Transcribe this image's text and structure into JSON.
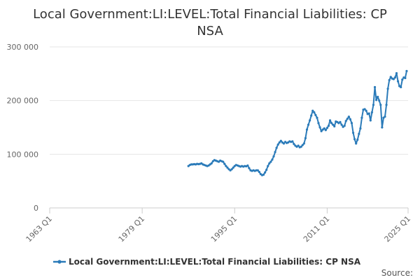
{
  "chart_data": {
    "type": "line",
    "title": "Local Government:LI:LEVEL:Total Financial Liabilities: CP NSA",
    "xlabel": "",
    "ylabel": "",
    "x_tick_labels": [
      "1963 Q1",
      "1979 Q1",
      "1995 Q1",
      "2011 Q1",
      "2025 Q1"
    ],
    "y_tick_labels": [
      "0",
      "100 000",
      "200 000",
      "300 000"
    ],
    "ylim": [
      0,
      300000
    ],
    "xlim": [
      "1963 Q1",
      "2025 Q1"
    ],
    "grid": "horizontal",
    "legend_position": "bottom",
    "line_color": "#2b7bb9",
    "series": [
      {
        "name": "Local Government:LI:LEVEL:Total Financial Liabilities: CP NSA",
        "points": [
          [
            "1987 Q1",
            78000
          ],
          [
            "1987 Q2",
            80000
          ],
          [
            "1987 Q3",
            81000
          ],
          [
            "1987 Q4",
            81000
          ],
          [
            "1988 Q1",
            81500
          ],
          [
            "1988 Q2",
            81000
          ],
          [
            "1988 Q3",
            82000
          ],
          [
            "1988 Q4",
            81500
          ],
          [
            "1989 Q1",
            82000
          ],
          [
            "1989 Q2",
            83000
          ],
          [
            "1989 Q3",
            81000
          ],
          [
            "1989 Q4",
            80000
          ],
          [
            "1990 Q1",
            79000
          ],
          [
            "1990 Q2",
            78000
          ],
          [
            "1990 Q3",
            79000
          ],
          [
            "1990 Q4",
            81000
          ],
          [
            "1991 Q1",
            83000
          ],
          [
            "1991 Q2",
            87000
          ],
          [
            "1991 Q3",
            89000
          ],
          [
            "1991 Q4",
            88000
          ],
          [
            "1992 Q1",
            87000
          ],
          [
            "1992 Q2",
            86000
          ],
          [
            "1992 Q3",
            88000
          ],
          [
            "1992 Q4",
            87000
          ],
          [
            "1993 Q1",
            86000
          ],
          [
            "1993 Q2",
            82000
          ],
          [
            "1993 Q3",
            78000
          ],
          [
            "1993 Q4",
            75000
          ],
          [
            "1994 Q1",
            72000
          ],
          [
            "1994 Q2",
            70000
          ],
          [
            "1994 Q3",
            72000
          ],
          [
            "1994 Q4",
            75000
          ],
          [
            "1995 Q1",
            78000
          ],
          [
            "1995 Q2",
            80000
          ],
          [
            "1995 Q3",
            79000
          ],
          [
            "1995 Q4",
            78000
          ],
          [
            "1996 Q1",
            77000
          ],
          [
            "1996 Q2",
            78000
          ],
          [
            "1996 Q3",
            77000
          ],
          [
            "1996 Q4",
            78000
          ],
          [
            "1997 Q1",
            77500
          ],
          [
            "1997 Q2",
            79000
          ],
          [
            "1997 Q3",
            74000
          ],
          [
            "1997 Q4",
            70000
          ],
          [
            "1998 Q1",
            69000
          ],
          [
            "1998 Q2",
            70000
          ],
          [
            "1998 Q3",
            69000
          ],
          [
            "1998 Q4",
            70000
          ],
          [
            "1999 Q1",
            70000
          ],
          [
            "1999 Q2",
            67000
          ],
          [
            "1999 Q3",
            63000
          ],
          [
            "1999 Q4",
            61000
          ],
          [
            "2000 Q1",
            62000
          ],
          [
            "2000 Q2",
            66000
          ],
          [
            "2000 Q3",
            71000
          ],
          [
            "2000 Q4",
            78000
          ],
          [
            "2001 Q1",
            83000
          ],
          [
            "2001 Q2",
            86000
          ],
          [
            "2001 Q3",
            90000
          ],
          [
            "2001 Q4",
            96000
          ],
          [
            "2002 Q1",
            104000
          ],
          [
            "2002 Q2",
            112000
          ],
          [
            "2002 Q3",
            118000
          ],
          [
            "2002 Q4",
            122000
          ],
          [
            "2003 Q1",
            125000
          ],
          [
            "2003 Q2",
            122000
          ],
          [
            "2003 Q3",
            120000
          ],
          [
            "2003 Q4",
            123000
          ],
          [
            "2004 Q1",
            121000
          ],
          [
            "2004 Q2",
            122000
          ],
          [
            "2004 Q3",
            124000
          ],
          [
            "2004 Q4",
            123000
          ],
          [
            "2005 Q1",
            124000
          ],
          [
            "2005 Q2",
            119000
          ],
          [
            "2005 Q3",
            116000
          ],
          [
            "2005 Q4",
            114000
          ],
          [
            "2006 Q1",
            116000
          ],
          [
            "2006 Q2",
            113000
          ],
          [
            "2006 Q3",
            114000
          ],
          [
            "2006 Q4",
            117000
          ],
          [
            "2007 Q1",
            120000
          ],
          [
            "2007 Q2",
            130000
          ],
          [
            "2007 Q3",
            146000
          ],
          [
            "2007 Q4",
            155000
          ],
          [
            "2008 Q1",
            163000
          ],
          [
            "2008 Q2",
            172000
          ],
          [
            "2008 Q3",
            181000
          ],
          [
            "2008 Q4",
            178000
          ],
          [
            "2009 Q1",
            173000
          ],
          [
            "2009 Q2",
            168000
          ],
          [
            "2009 Q3",
            158000
          ],
          [
            "2009 Q4",
            150000
          ],
          [
            "2010 Q1",
            143000
          ],
          [
            "2010 Q2",
            146000
          ],
          [
            "2010 Q3",
            148000
          ],
          [
            "2010 Q4",
            145000
          ],
          [
            "2011 Q1",
            149000
          ],
          [
            "2011 Q2",
            153000
          ],
          [
            "2011 Q3",
            163000
          ],
          [
            "2011 Q4",
            158000
          ],
          [
            "2012 Q1",
            155000
          ],
          [
            "2012 Q2",
            152000
          ],
          [
            "2012 Q3",
            161000
          ],
          [
            "2012 Q4",
            160000
          ],
          [
            "2013 Q1",
            158000
          ],
          [
            "2013 Q2",
            160000
          ],
          [
            "2013 Q3",
            155000
          ],
          [
            "2013 Q4",
            151000
          ],
          [
            "2014 Q1",
            153000
          ],
          [
            "2014 Q2",
            162000
          ],
          [
            "2014 Q3",
            166000
          ],
          [
            "2014 Q4",
            170000
          ],
          [
            "2015 Q1",
            165000
          ],
          [
            "2015 Q2",
            158000
          ],
          [
            "2015 Q3",
            140000
          ],
          [
            "2015 Q4",
            128000
          ],
          [
            "2016 Q1",
            120000
          ],
          [
            "2016 Q2",
            127000
          ],
          [
            "2016 Q3",
            138000
          ],
          [
            "2016 Q4",
            148000
          ],
          [
            "2017 Q1",
            168000
          ],
          [
            "2017 Q2",
            183000
          ],
          [
            "2017 Q3",
            184000
          ],
          [
            "2017 Q4",
            181000
          ],
          [
            "2018 Q1",
            175000
          ],
          [
            "2018 Q2",
            176000
          ],
          [
            "2018 Q3",
            163000
          ],
          [
            "2018 Q4",
            178000
          ],
          [
            "2019 Q1",
            192000
          ],
          [
            "2019 Q2",
            225000
          ],
          [
            "2019 Q3",
            201000
          ],
          [
            "2019 Q4",
            207000
          ],
          [
            "2020 Q1",
            200000
          ],
          [
            "2020 Q2",
            192000
          ],
          [
            "2020 Q3",
            150000
          ],
          [
            "2020 Q4",
            168000
          ],
          [
            "2021 Q1",
            170000
          ],
          [
            "2021 Q2",
            192000
          ],
          [
            "2021 Q3",
            222000
          ],
          [
            "2021 Q4",
            238000
          ],
          [
            "2022 Q1",
            244000
          ],
          [
            "2022 Q2",
            241000
          ],
          [
            "2022 Q3",
            240000
          ],
          [
            "2022 Q4",
            243000
          ],
          [
            "2023 Q1",
            251000
          ],
          [
            "2023 Q2",
            236000
          ],
          [
            "2023 Q3",
            227000
          ],
          [
            "2023 Q4",
            225000
          ],
          [
            "2024 Q1",
            239000
          ],
          [
            "2024 Q2",
            243000
          ],
          [
            "2024 Q3",
            242000
          ],
          [
            "2024 Q4",
            255000
          ]
        ]
      }
    ],
    "legend": [
      "Local Government:LI:LEVEL:Total Financial Liabilities: CP NSA"
    ],
    "source_label": "Source:"
  }
}
